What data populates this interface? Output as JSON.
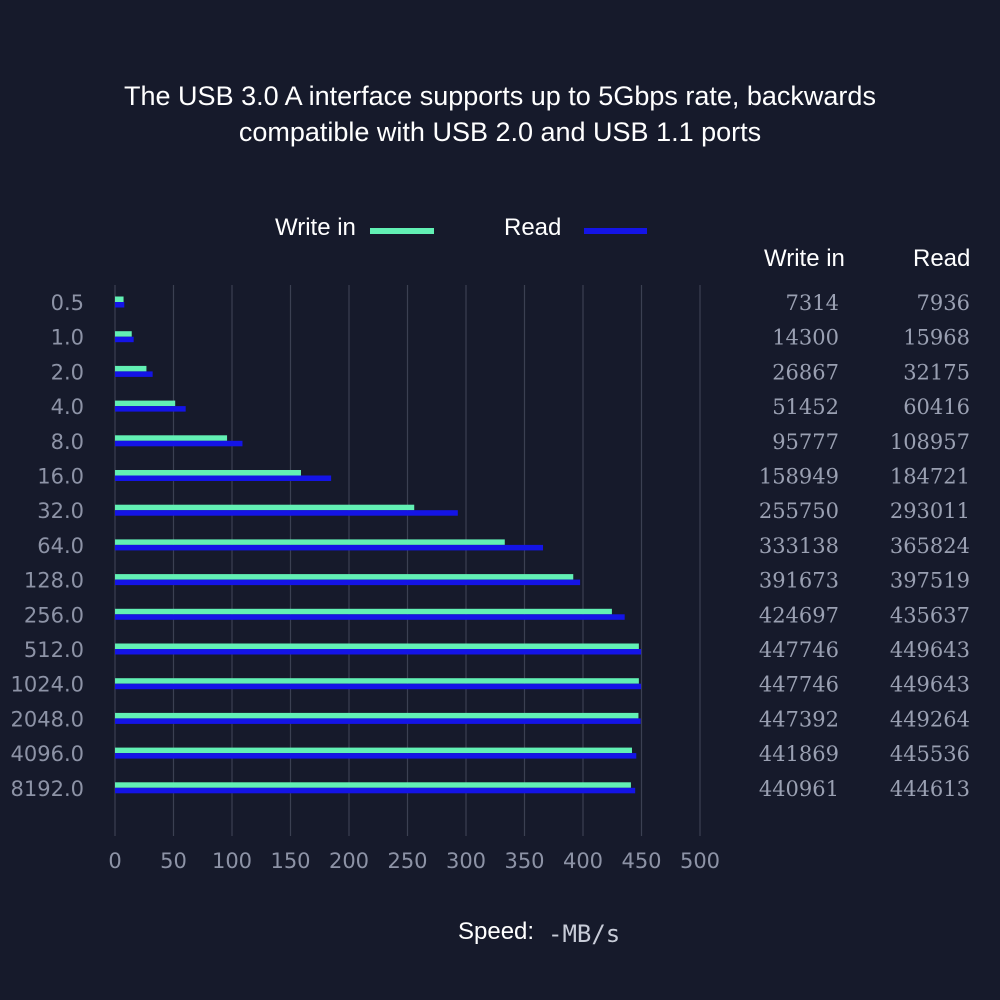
{
  "title_lines": [
    "The USB 3.0 A interface supports up to 5Gbps rate, backwards",
    "compatible with USB 2.0 and USB 1.1 ports"
  ],
  "legend": {
    "write_label": "Write in",
    "read_label": "Read"
  },
  "table_headers": {
    "write": "Write in",
    "read": "Read"
  },
  "speed_label": "Speed:",
  "speed_unit": "-MB/s",
  "colors": {
    "write": "#62f0b4",
    "read": "#1414e6",
    "background": "#161a2b",
    "grid": "#3b4052"
  },
  "chart_data": {
    "type": "bar",
    "orientation": "horizontal",
    "categories": [
      "0.5",
      "1.0",
      "2.0",
      "4.0",
      "8.0",
      "16.0",
      "32.0",
      "64.0",
      "128.0",
      "256.0",
      "512.0",
      "1024.0",
      "2048.0",
      "4096.0",
      "8192.0"
    ],
    "series": [
      {
        "name": "Write in",
        "values": [
          7.314,
          14.3,
          26.867,
          51.452,
          95.777,
          158.949,
          255.75,
          333.138,
          391.673,
          424.697,
          447.746,
          447.746,
          447.392,
          441.869,
          440.961
        ],
        "printed": [
          "7314",
          "14300",
          "26867",
          "51452",
          "95777",
          "158949",
          "255750",
          "333138",
          "391673",
          "424697",
          "447746",
          "447746",
          "447392",
          "441869",
          "440961"
        ]
      },
      {
        "name": "Read",
        "values": [
          7.936,
          15.968,
          32.175,
          60.416,
          108.957,
          184.721,
          293.011,
          365.824,
          397.519,
          435.637,
          449.643,
          449.643,
          449.264,
          445.536,
          444.613
        ],
        "printed": [
          "7936",
          "15968",
          "32175",
          "60416",
          "108957",
          "184721",
          "293011",
          "365824",
          "397519",
          "435637",
          "449643",
          "449643",
          "449264",
          "445536",
          "444613"
        ]
      }
    ],
    "xlim": [
      0,
      500
    ],
    "xticks": [
      "0",
      "50",
      "100",
      "150",
      "200",
      "250",
      "300",
      "350",
      "400",
      "450",
      "500"
    ],
    "xlabel": "Speed: -MB/s",
    "grid": true,
    "legend": "top-center"
  }
}
